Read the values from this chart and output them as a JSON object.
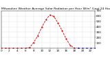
{
  "title": "Milwaukee Weather Average Solar Radiation per Hour W/m² (Last 24 Hours)",
  "hours": [
    0,
    1,
    2,
    3,
    4,
    5,
    6,
    7,
    8,
    9,
    10,
    11,
    12,
    13,
    14,
    15,
    16,
    17,
    18,
    19,
    20,
    21,
    22,
    23
  ],
  "solar": [
    0,
    0,
    0,
    0,
    0,
    0,
    0,
    15,
    110,
    230,
    390,
    530,
    620,
    590,
    470,
    330,
    175,
    60,
    5,
    0,
    0,
    0,
    0,
    0
  ],
  "line_color_red": "#cc0000",
  "line_color_blue": "#0000bb",
  "split_hour": 19,
  "ylim": [
    0,
    700
  ],
  "xlim": [
    0,
    23
  ],
  "yticks": [
    100,
    200,
    300,
    400,
    500,
    600,
    700
  ],
  "xtick_step": 2,
  "ylabel_fontsize": 3.0,
  "xlabel_fontsize": 3.0,
  "title_fontsize": 3.2,
  "bg_color": "#ffffff",
  "grid_color": "#aaaaaa",
  "linewidth": 0.6,
  "markersize": 1.0
}
